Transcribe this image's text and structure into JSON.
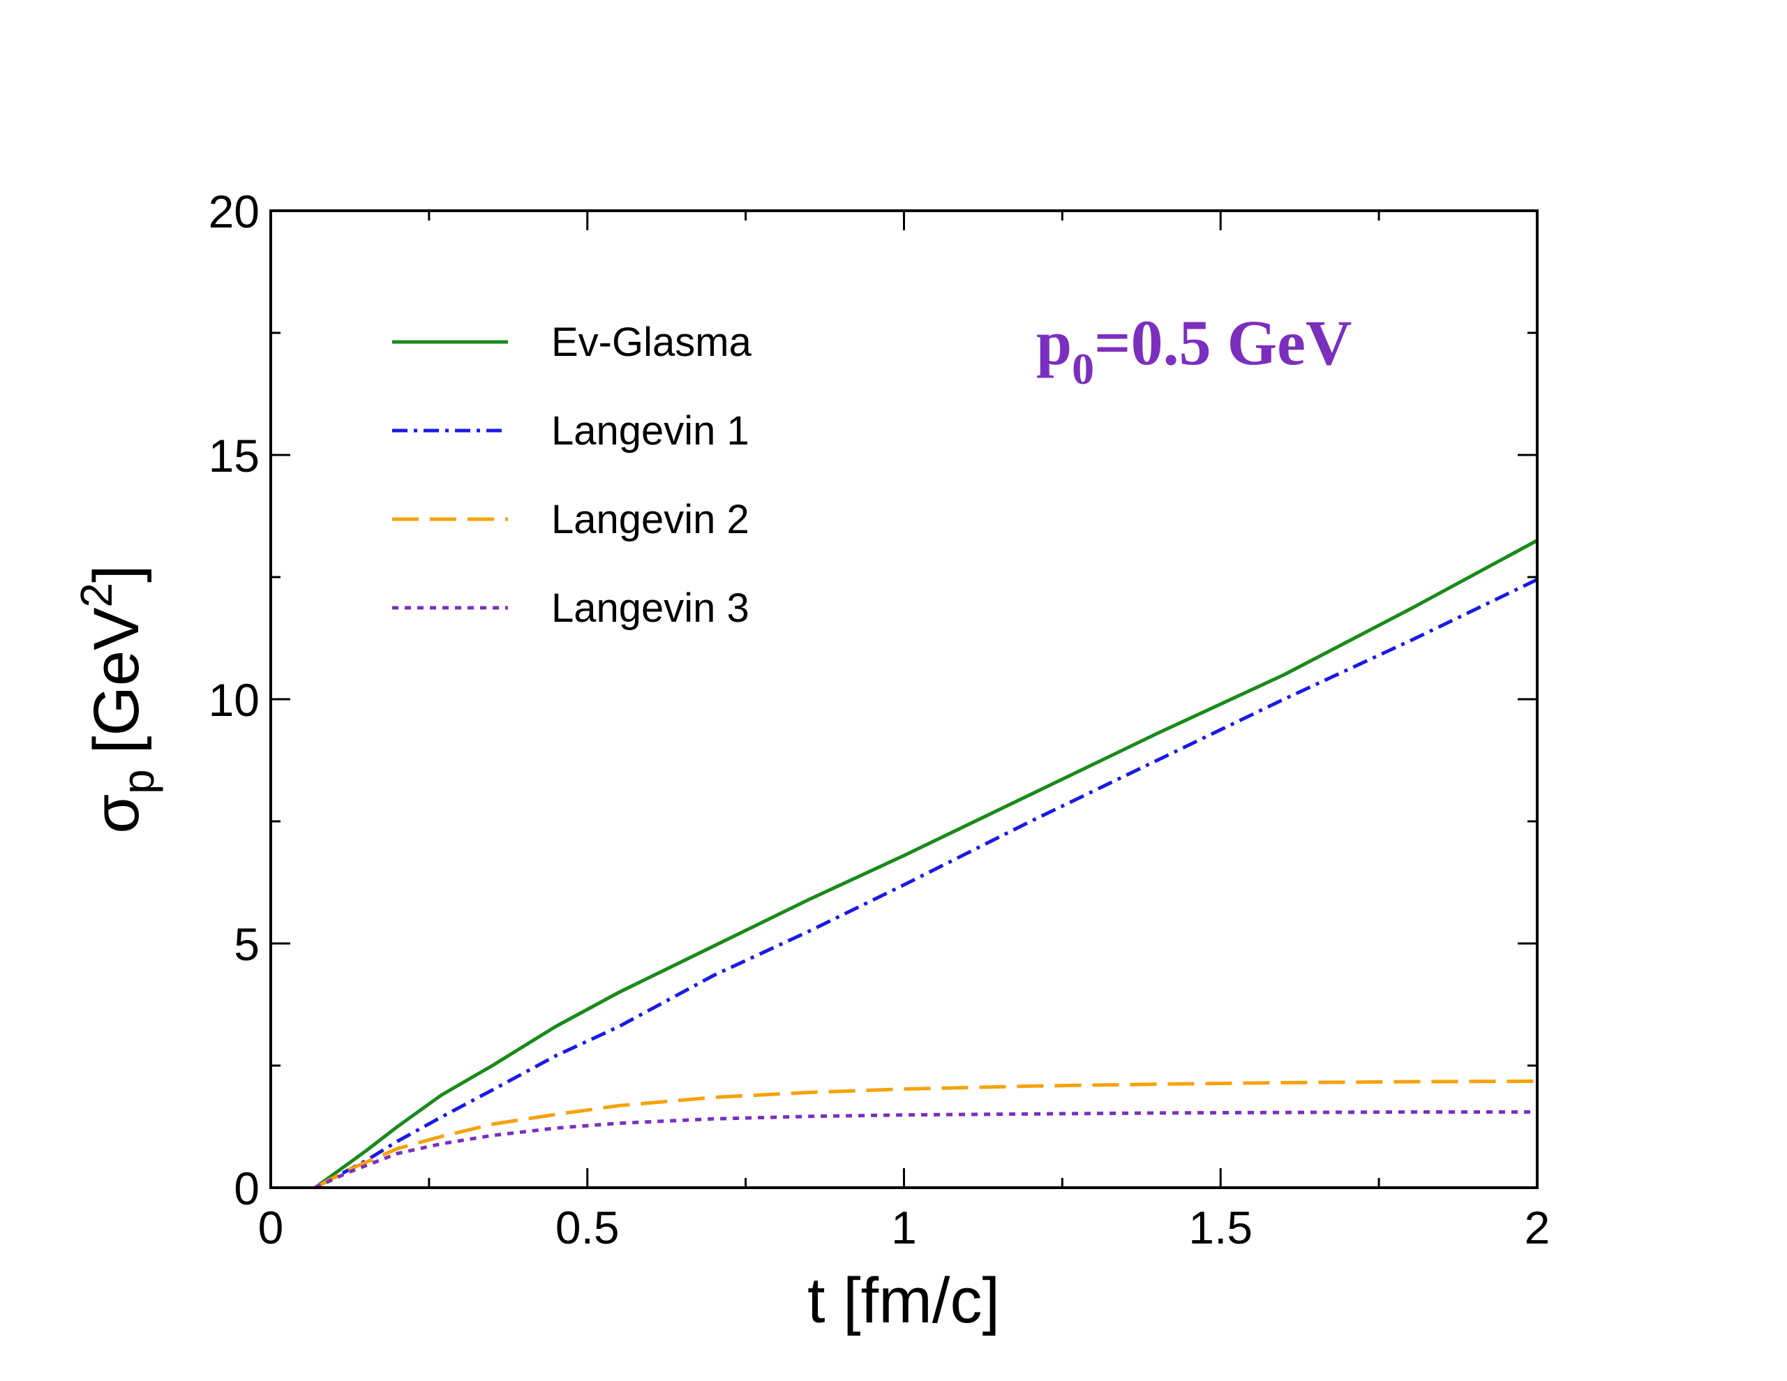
{
  "chart_data": {
    "type": "line",
    "xlabel": "t [fm/c]",
    "ylabel_main": "σ",
    "ylabel_sub": "p",
    "ylabel_unit": "[GeV",
    "ylabel_unit_sup": "2",
    "ylabel_unit_close": "]",
    "xlim": [
      0,
      2
    ],
    "ylim": [
      0,
      20
    ],
    "xticks": [
      0,
      0.5,
      1,
      1.5,
      2
    ],
    "xtick_labels": [
      "0",
      "0.5",
      "1",
      "1.5",
      "2"
    ],
    "yticks": [
      0,
      5,
      10,
      15,
      20
    ],
    "ytick_labels": [
      "0",
      "5",
      "10",
      "15",
      "20"
    ],
    "annotation": {
      "main": "p",
      "sub": "0",
      "rest": "=0.5 GeV",
      "color": "#7b2fbe"
    },
    "legend_position": "top-left",
    "series": [
      {
        "name": "Ev-Glasma",
        "color": "#1a8a1a",
        "dash": "solid",
        "x": [
          0.07,
          0.15,
          0.2,
          0.27,
          0.35,
          0.45,
          0.55,
          0.7,
          0.85,
          1.0,
          1.2,
          1.4,
          1.6,
          1.8,
          2.0
        ],
        "y": [
          0,
          0.75,
          1.25,
          1.9,
          2.5,
          3.3,
          4.0,
          4.95,
          5.9,
          6.8,
          8.05,
          9.3,
          10.5,
          11.85,
          13.25
        ]
      },
      {
        "name": "Langevin 1",
        "color": "#1a1ae6",
        "dash": "dashdot",
        "x": [
          0.07,
          0.15,
          0.2,
          0.27,
          0.35,
          0.45,
          0.55,
          0.7,
          0.85,
          1.0,
          1.2,
          1.4,
          1.6,
          1.8,
          2.0
        ],
        "y": [
          0,
          0.55,
          0.95,
          1.45,
          2.0,
          2.7,
          3.3,
          4.35,
          5.25,
          6.2,
          7.5,
          8.75,
          10.0,
          11.2,
          12.45
        ]
      },
      {
        "name": "Langevin 2",
        "color": "#f5a20a",
        "dash": "dashed",
        "x": [
          0.07,
          0.12,
          0.2,
          0.27,
          0.35,
          0.45,
          0.55,
          0.7,
          0.85,
          1.0,
          1.2,
          1.4,
          1.6,
          1.8,
          2.0
        ],
        "y": [
          0,
          0.35,
          0.8,
          1.05,
          1.3,
          1.5,
          1.68,
          1.85,
          1.95,
          2.02,
          2.08,
          2.12,
          2.15,
          2.17,
          2.18
        ]
      },
      {
        "name": "Langevin 3",
        "color": "#7b2fbe",
        "dash": "dotted",
        "x": [
          0.07,
          0.12,
          0.2,
          0.27,
          0.35,
          0.45,
          0.55,
          0.7,
          0.85,
          1.0,
          1.2,
          1.4,
          1.6,
          1.8,
          2.0
        ],
        "y": [
          0,
          0.3,
          0.7,
          0.9,
          1.07,
          1.22,
          1.32,
          1.41,
          1.46,
          1.49,
          1.51,
          1.53,
          1.54,
          1.55,
          1.55
        ]
      }
    ]
  }
}
